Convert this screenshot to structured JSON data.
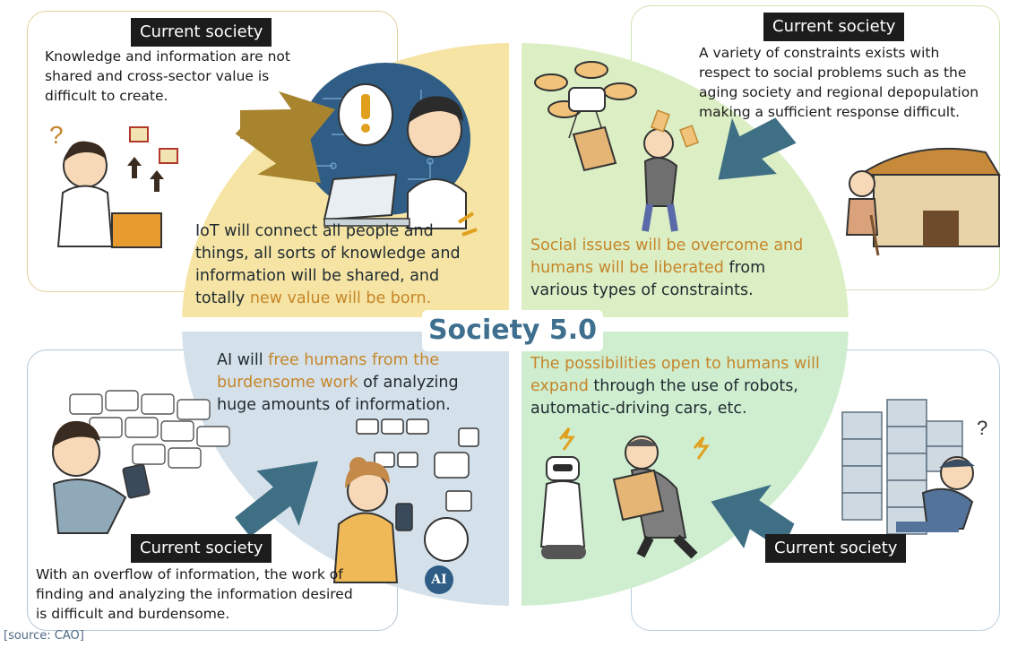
{
  "title": "Society 5.0",
  "source": "[source: CAO]",
  "colors": {
    "top_left_quadrant": "#f6e4a4",
    "top_right_quadrant": "#dcefc4",
    "bottom_left_quadrant": "#d5e1ea",
    "bottom_right_quadrant": "#cfeed0",
    "arrow_gold": "#a8842f",
    "arrow_teal": "#3f6f85",
    "highlight": "#c5862a",
    "title": "#3f6f8f"
  },
  "quadrants": {
    "top_left": {
      "badge": "Current society",
      "problem": [
        "Knowledge and information are not",
        "shared and cross-sector value is",
        "difficult to create."
      ],
      "solution_line1": "IoT will connect all people and",
      "solution_line2": "things, all sorts of knowledge and",
      "solution_line3": "information will be shared, and",
      "solution_line4_plain": "totally ",
      "solution_line4_highlight": "new value will be born."
    },
    "top_right": {
      "badge": "Current society",
      "problem": [
        "A variety of constraints exists with",
        "respect to social problems such as the",
        "aging society and regional depopulation",
        "making a sufficient response difficult."
      ],
      "solution_line1_highlight": "Social issues will be overcome and",
      "solution_line2_highlight": "humans will be liberated",
      "solution_line2_plain": " from",
      "solution_line3": "various types of constraints."
    },
    "bottom_left": {
      "badge": "Current society",
      "problem": [
        "With an overflow of information, the work of",
        "finding and analyzing the information desired",
        "is difficult and burdensome."
      ],
      "solution_line1_plain": "AI will ",
      "solution_line1_highlight": "free humans from the",
      "solution_line2_highlight": "burdensome work",
      "solution_line2_plain": " of analyzing",
      "solution_line3": "huge amounts of information.",
      "ai_label": "AI"
    },
    "bottom_right": {
      "badge": "Current society",
      "solution_line1_highlight": "The possibilities open to humans will",
      "solution_line2_highlight": "expand",
      "solution_line2_plain": " through the use of robots,",
      "solution_line3": "automatic-driving cars, etc."
    }
  }
}
